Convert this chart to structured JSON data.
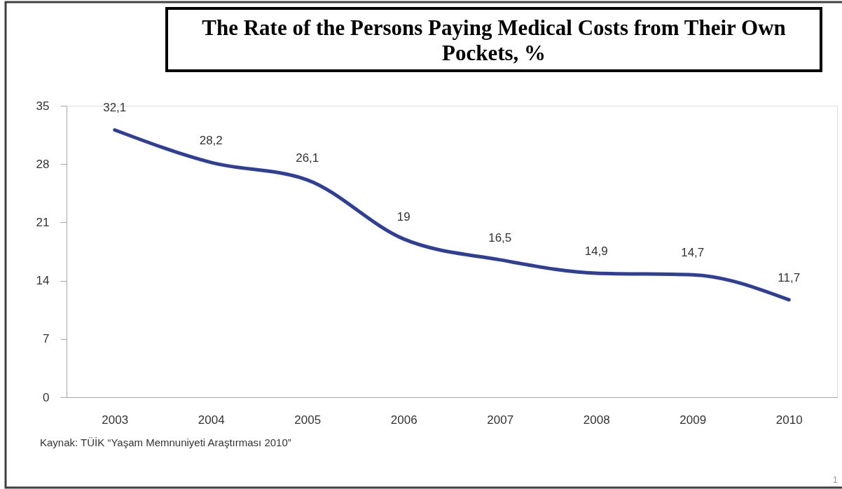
{
  "chart_data": {
    "type": "line",
    "title": "The Rate of the Persons Paying Medical Costs from Their Own Pockets, %",
    "categories": [
      "2003",
      "2004",
      "2005",
      "2006",
      "2007",
      "2008",
      "2009",
      "2010"
    ],
    "values": [
      32.1,
      28.2,
      26.1,
      19,
      16.5,
      14.9,
      14.7,
      11.7
    ],
    "color": "#2f3f98",
    "value_labels": [
      "32,1",
      "28,2",
      "26,1",
      "19",
      "16,5",
      "14,9",
      "14,7",
      "11,7"
    ],
    "ylim": [
      0,
      35
    ],
    "yticks": [
      0,
      7,
      14,
      21,
      28,
      35
    ],
    "annotations": [
      "Kaynak: TÜİK “Yaşam Memnuniyeti Araştırması 2010”",
      "1"
    ]
  }
}
